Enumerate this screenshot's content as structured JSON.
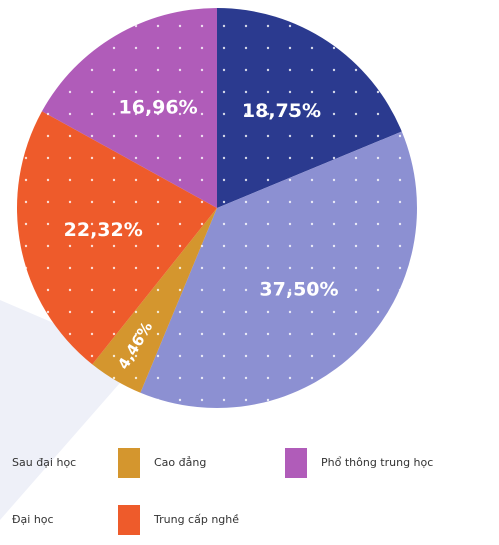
{
  "chart_data": {
    "type": "pie",
    "categories": [
      "Sau đại học",
      "Đại học",
      "Cao đẳng",
      "Trung cấp nghề",
      "Phổ thông trung học"
    ],
    "values": [
      18.75,
      37.5,
      4.46,
      22.32,
      16.96
    ],
    "value_labels": [
      "18,75%",
      "37,50%",
      "4,46%",
      "22,32%",
      "16,96%"
    ],
    "colors": [
      "#2b3a8f",
      "#8c90d2",
      "#d4962e",
      "#ee5b2b",
      "#b05cb9"
    ],
    "legend": "bottom"
  }
}
